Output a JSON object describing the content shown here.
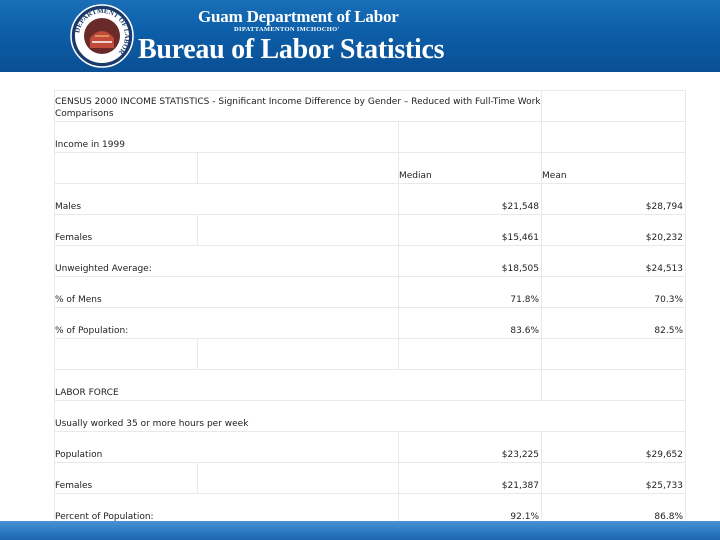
{
  "header": {
    "department": "Guam Department of Labor",
    "department_sub": "DIPATTAMENTON IMCHOCHO'",
    "bureau": "Bureau of Labor Statistics",
    "seal_text": "DEPARTMENT OF LABOR"
  },
  "table": {
    "title": "CENSUS 2000 INCOME STATISTICS  - Significant Income Difference by Gender – Reduced with Full-Time Work Comparisons",
    "subtitle": "Income in 1999",
    "col_median": "Median",
    "col_mean": "Mean",
    "rows1": [
      {
        "label": "Males",
        "median": "$21,548",
        "mean": "$28,794"
      },
      {
        "label": "Females",
        "median": "$15,461",
        "mean": "$20,232"
      },
      {
        "label": "Unweighted Average:",
        "median": "$18,505",
        "mean": "$24,513"
      },
      {
        "label": "% of Mens",
        "median": "71.8%",
        "mean": "70.3%"
      },
      {
        "label": "% of Population:",
        "median": "83.6%",
        "mean": "82.5%"
      }
    ],
    "labor_force": "LABOR FORCE",
    "usually_worked": "Usually worked 35 or more hours per week",
    "rows2": [
      {
        "label": "Population",
        "median": "$23,225",
        "mean": "$29,652"
      },
      {
        "label": "Females",
        "median": "$21,387",
        "mean": "$25,733"
      },
      {
        "label": "Percent of Population:",
        "median": "92.1%",
        "mean": "86.8%"
      }
    ]
  },
  "colors": {
    "header_blue": "#0c5ea8",
    "footer_blue": "#2f7cc4",
    "grid": "#e6e9ee"
  }
}
